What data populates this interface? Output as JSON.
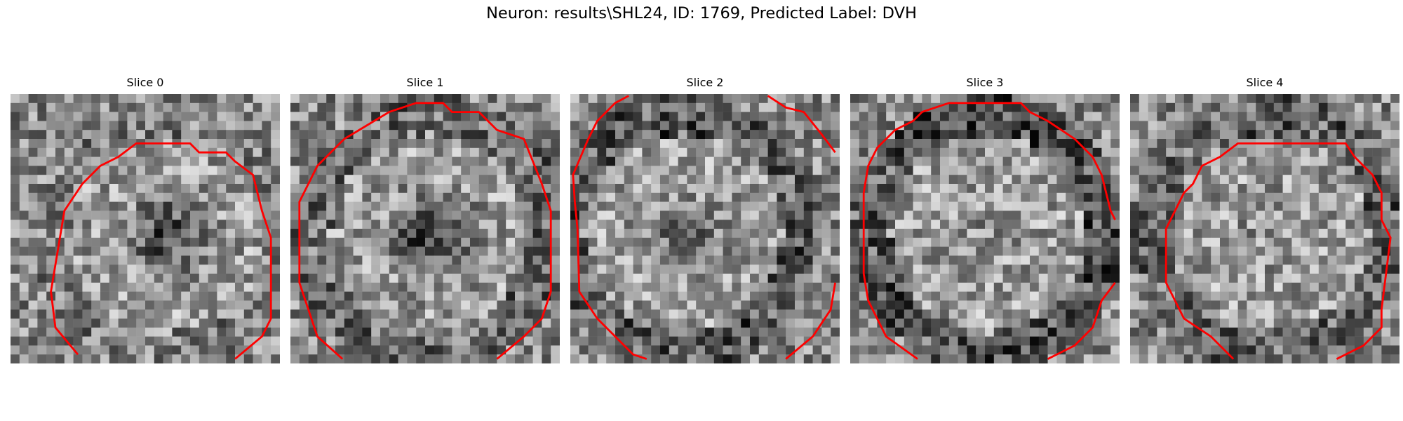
{
  "figure": {
    "title": "Neuron: results\\SHL24, ID: 1769, Predicted Label: DVH",
    "contour_color": "#ff0000",
    "image_colormap": "gray",
    "slices": [
      {
        "title": "Slice 0"
      },
      {
        "title": "Slice 1"
      },
      {
        "title": "Slice 2"
      },
      {
        "title": "Slice 3"
      },
      {
        "title": "Slice 4"
      }
    ]
  }
}
